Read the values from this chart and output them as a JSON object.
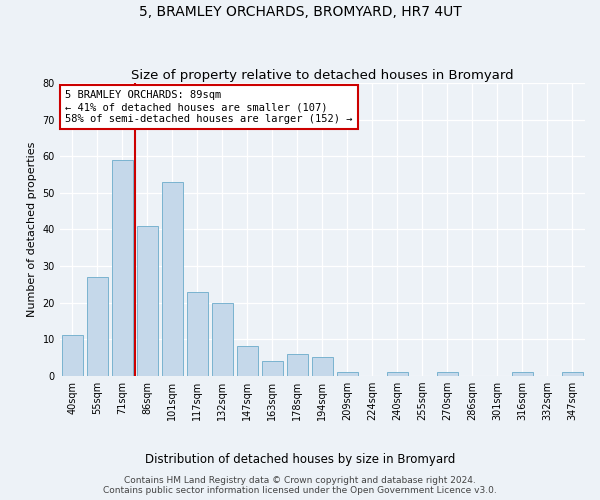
{
  "title": "5, BRAMLEY ORCHARDS, BROMYARD, HR7 4UT",
  "subtitle": "Size of property relative to detached houses in Bromyard",
  "xlabel": "Distribution of detached houses by size in Bromyard",
  "ylabel": "Number of detached properties",
  "bar_labels": [
    "40sqm",
    "55sqm",
    "71sqm",
    "86sqm",
    "101sqm",
    "117sqm",
    "132sqm",
    "147sqm",
    "163sqm",
    "178sqm",
    "194sqm",
    "209sqm",
    "224sqm",
    "240sqm",
    "255sqm",
    "270sqm",
    "286sqm",
    "301sqm",
    "316sqm",
    "332sqm",
    "347sqm"
  ],
  "bar_values": [
    11,
    27,
    59,
    41,
    53,
    23,
    20,
    8,
    4,
    6,
    5,
    1,
    0,
    1,
    0,
    1,
    0,
    0,
    1,
    0,
    1
  ],
  "bar_color": "#c5d8ea",
  "bar_edge_color": "#7ab3d0",
  "ylim": [
    0,
    80
  ],
  "yticks": [
    0,
    10,
    20,
    30,
    40,
    50,
    60,
    70,
    80
  ],
  "vline_x_index": 2.5,
  "vline_color": "#cc0000",
  "annotation_text": "5 BRAMLEY ORCHARDS: 89sqm\n← 41% of detached houses are smaller (107)\n58% of semi-detached houses are larger (152) →",
  "annotation_box_color": "#ffffff",
  "annotation_box_edge": "#cc0000",
  "background_color": "#edf2f7",
  "grid_color": "#ffffff",
  "footer_text": "Contains HM Land Registry data © Crown copyright and database right 2024.\nContains public sector information licensed under the Open Government Licence v3.0.",
  "title_fontsize": 10,
  "subtitle_fontsize": 9.5,
  "xlabel_fontsize": 8.5,
  "ylabel_fontsize": 8,
  "tick_fontsize": 7,
  "annotation_fontsize": 7.5,
  "footer_fontsize": 6.5
}
